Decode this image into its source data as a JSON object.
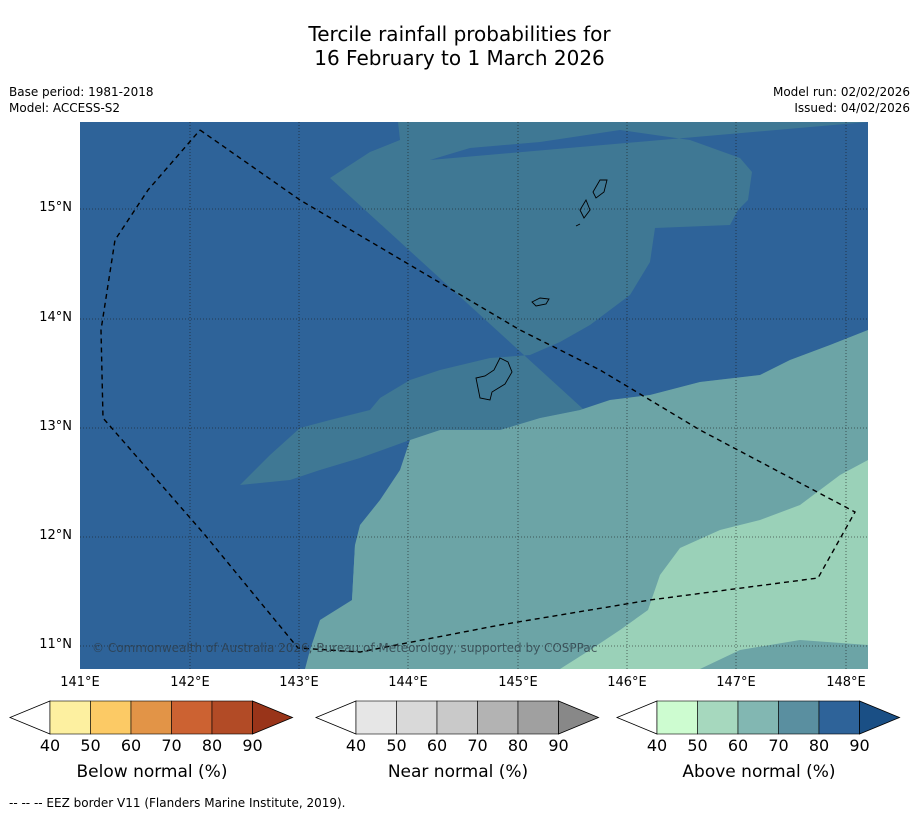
{
  "title_line1": "Tercile rainfall probabilities for",
  "title_line2": "16 February to 1 March 2026",
  "meta": {
    "base_period": "Base period: 1981-2018",
    "model": "Model: ACCESS-S2",
    "model_run": "Model run: 02/02/2026",
    "issued": "Issued: 04/02/2026"
  },
  "map": {
    "lat_labels": [
      "15°N",
      "14°N",
      "13°N",
      "12°N",
      "11°N"
    ],
    "lon_labels": [
      "141°E",
      "142°E",
      "143°E",
      "144°E",
      "145°E",
      "146°E",
      "147°E",
      "148°E"
    ],
    "copyright": "© Commonwealth of Australia 2026, Bureau of Meteorology, supported by COSPPac",
    "colors": {
      "above_80": "#2e6399",
      "above_70": "#3f7894",
      "above_60": "#6ca4a6",
      "above_50": "#9ad1b8"
    }
  },
  "colorbars": [
    {
      "label": "Below normal (%)",
      "ticks": [
        "40",
        "50",
        "60",
        "70",
        "80",
        "90"
      ],
      "colors": [
        "#ffffff",
        "#fdf0a0",
        "#fcca65",
        "#e29447",
        "#cc6232",
        "#b24b26",
        "#993419"
      ]
    },
    {
      "label": "Near normal (%)",
      "ticks": [
        "40",
        "50",
        "60",
        "70",
        "80",
        "90"
      ],
      "colors": [
        "#ffffff",
        "#e6e6e6",
        "#d9d9d9",
        "#c9c9c9",
        "#b3b3b3",
        "#a0a0a0",
        "#888888"
      ]
    },
    {
      "label": "Above normal (%)",
      "ticks": [
        "40",
        "50",
        "60",
        "70",
        "80",
        "90"
      ],
      "colors": [
        "#ffffff",
        "#cdfcd0",
        "#a6d8be",
        "#82b7b2",
        "#5a8fa0",
        "#2e6399",
        "#1a4f85"
      ]
    }
  ],
  "footnote": "--  --  -- EEZ border V11 (Flanders Marine Institute, 2019)."
}
